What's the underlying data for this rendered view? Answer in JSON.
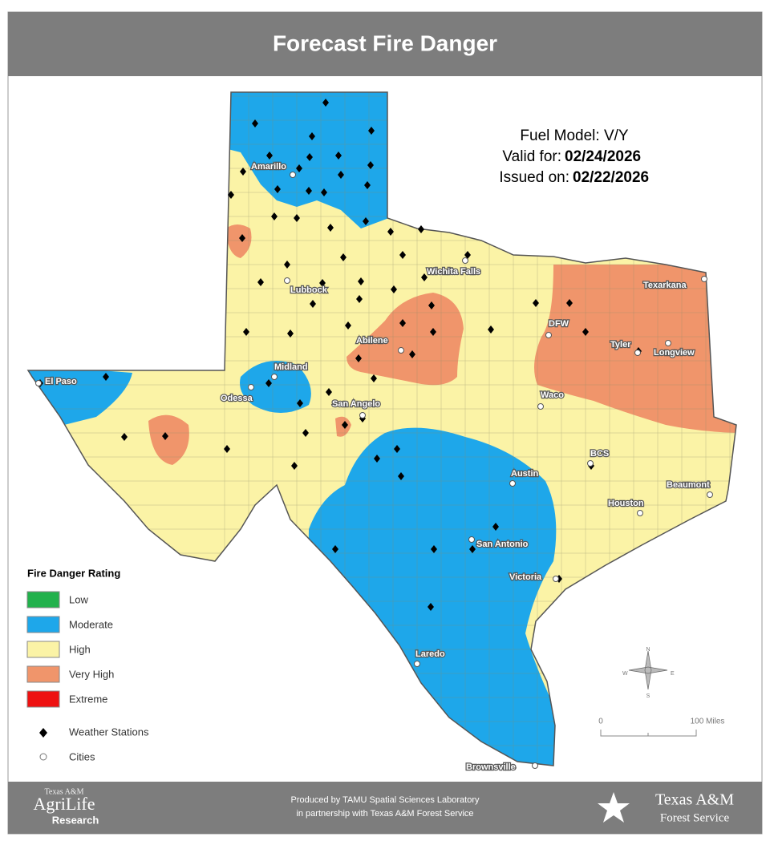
{
  "header": {
    "title": "Forecast Fire Danger"
  },
  "info": {
    "fuel_model": "Fuel Model: V/Y",
    "valid_label": "Valid for:",
    "valid_date": "02/24/2026",
    "issued_label": "Issued on:",
    "issued_date": "02/22/2026"
  },
  "legend": {
    "title": "Fire Danger Rating",
    "items": [
      {
        "label": "Low",
        "color": "#22b14c"
      },
      {
        "label": "Moderate",
        "color": "#1ea7ea"
      },
      {
        "label": "High",
        "color": "#fbf3a6"
      },
      {
        "label": "Very High",
        "color": "#f0956b"
      },
      {
        "label": "Extreme",
        "color": "#ee1111"
      }
    ],
    "stations": "Weather Stations",
    "cities": "Cities"
  },
  "cities": [
    "Amarillo",
    "Lubbock",
    "Wichita Falls",
    "Texarkana",
    "DFW",
    "Tyler",
    "Longview",
    "Abilene",
    "Midland",
    "Odessa",
    "El Paso",
    "San Angelo",
    "Waco",
    "BCS",
    "Austin",
    "Beaumont",
    "Houston",
    "San Antonio",
    "Victoria",
    "Laredo",
    "Brownsville"
  ],
  "scale": {
    "start": "0",
    "end": "100 Miles"
  },
  "compass": {
    "n": "N",
    "s": "S",
    "e": "E",
    "w": "W"
  },
  "footer": {
    "left_top": "Texas A&M",
    "left_mid": "AgriLife",
    "left_bottom": "Research",
    "produced_1": "Produced by TAMU Spatial Sciences Laboratory",
    "produced_2": "in partnership with Texas A&M Forest Service",
    "right_top": "Texas A&M",
    "right_bottom": "Forest Service"
  }
}
